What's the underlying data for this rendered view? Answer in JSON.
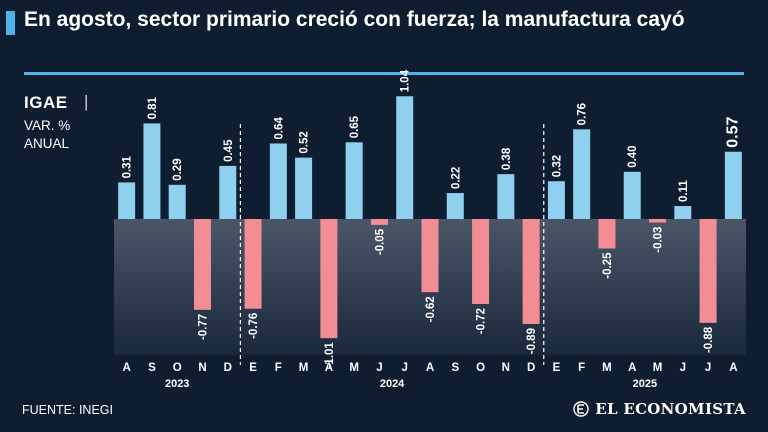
{
  "header": {
    "title": "En agosto, sector primario creció con fuerza; la manufactura cayó"
  },
  "legend": {
    "name": "IGAE",
    "separator": "|",
    "unit_line1": "VAR. %",
    "unit_line2": "ANUAL"
  },
  "footer": {
    "source": "FUENTE: INEGI",
    "brand": "EL ECONOMISTA"
  },
  "colors": {
    "background": "#0f1d31",
    "accent": "#4fb3e6",
    "positive_bar": "#8fd0ee",
    "negative_bar": "#f28e93",
    "negative_zone_top": "#4a5668",
    "negative_zone_bottom": "#1a283c"
  },
  "chart_data": {
    "type": "bar",
    "title": "En agosto, sector primario creció con fuerza; la manufactura cayó",
    "ylabel": "VAR. % ANUAL",
    "xlabel": "",
    "ylim": [
      -1.2,
      1.1
    ],
    "grid": false,
    "categories": [
      "A",
      "S",
      "O",
      "N",
      "D",
      "E",
      "F",
      "M",
      "A",
      "M",
      "J",
      "J",
      "A",
      "S",
      "O",
      "N",
      "D",
      "E",
      "F",
      "M",
      "A",
      "M",
      "J",
      "J",
      "A"
    ],
    "years": [
      {
        "label": "2023",
        "start": 0,
        "end": 4
      },
      {
        "label": "2024",
        "start": 5,
        "end": 16
      },
      {
        "label": "2025",
        "start": 17,
        "end": 24
      }
    ],
    "series": [
      {
        "name": "IGAE",
        "values": [
          0.31,
          0.81,
          0.29,
          -0.77,
          0.45,
          -0.76,
          0.64,
          0.52,
          -1.01,
          0.65,
          -0.05,
          1.04,
          -0.62,
          0.22,
          -0.72,
          0.38,
          -0.89,
          0.32,
          0.76,
          -0.25,
          0.4,
          -0.03,
          0.11,
          -0.88,
          0.57
        ],
        "labels": [
          "0.31",
          "0.81",
          "0.29",
          "-0.77",
          "0.45",
          "-0.76",
          "0.64",
          "0.52",
          "-1.01",
          "0.65",
          "-0.05",
          "1.04",
          "-0.62",
          "0.22",
          "-0.72",
          "0.38",
          "-0.89",
          "0.32",
          "0.76",
          "-0.25",
          "0.40",
          "-0.03",
          "0.11",
          "-0.88",
          "0.57"
        ]
      }
    ],
    "year_dividers_before": [
      5,
      17
    ],
    "highlight_last": true
  }
}
